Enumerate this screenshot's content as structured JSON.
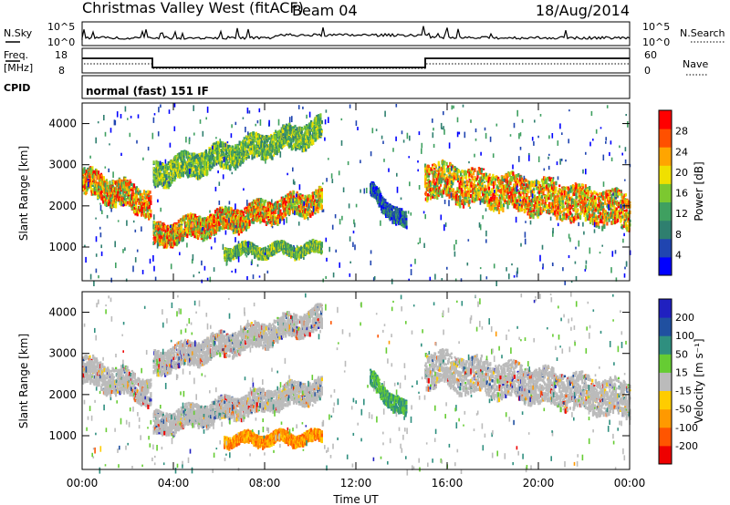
{
  "header": {
    "station": "Christmas Valley West (fitACF)",
    "beam": "Beam 04",
    "date": "18/Aug/2014"
  },
  "summary": {
    "nsky_label": "N.Sky",
    "nsky_ticks": [
      "10^5",
      "10^0"
    ],
    "nsearch_label": "N.Search",
    "nsearch_ticks": [
      "10^5",
      "10^0"
    ],
    "freq_label": [
      "Freq.",
      "[MHz]"
    ],
    "freq_ticks": [
      "18",
      "8"
    ],
    "nave_label": "Nave",
    "nave_ticks": [
      "60",
      "0"
    ],
    "cpid_label": "CPID",
    "cpid_value": "normal (fast) 151 IF"
  },
  "chart_data": [
    {
      "type": "heatmap",
      "panel": "power",
      "ylabel": "Slant Range [km]",
      "xlabel": "Time UT",
      "x_ticks": [
        "00:00",
        "04:00",
        "08:00",
        "12:00",
        "16:00",
        "20:00",
        "00:00"
      ],
      "y_ticks": [
        "1000",
        "2000",
        "3000",
        "4000"
      ],
      "xlim_hours": [
        0,
        24
      ],
      "ylim_km": [
        180,
        4500
      ],
      "colorbar": {
        "label": "Power [dB]",
        "ticks": [
          "28",
          "24",
          "20",
          "16",
          "12",
          "8",
          "4"
        ],
        "range": [
          0,
          30
        ],
        "colors": [
          "#0000ff",
          "#2045b0",
          "#2f7f6f",
          "#3fa060",
          "#7cc830",
          "#f0e000",
          "#ffa500",
          "#ff5000",
          "#ff0000"
        ]
      },
      "echo_bands": [
        {
          "t0": 0.0,
          "t1": 3.0,
          "r0": 2650,
          "r1": 2100,
          "w": 320,
          "level": "high"
        },
        {
          "t0": 3.1,
          "t1": 10.5,
          "r0": 1300,
          "r1": 2200,
          "w": 260,
          "level": "high"
        },
        {
          "t0": 3.1,
          "t1": 10.5,
          "r0": 2800,
          "r1": 3900,
          "w": 280,
          "level": "mid"
        },
        {
          "t0": 6.2,
          "t1": 10.5,
          "r0": 950,
          "r1": 1000,
          "w": 120,
          "level": "mid"
        },
        {
          "t0": 15.0,
          "t1": 24.0,
          "r0": 2700,
          "r1": 1900,
          "w": 420,
          "level": "high"
        },
        {
          "t0": 12.6,
          "t1": 14.2,
          "r0": 2400,
          "r1": 1600,
          "w": 180,
          "level": "low"
        }
      ]
    },
    {
      "type": "heatmap",
      "panel": "velocity",
      "ylabel": "Slant Range [km]",
      "xlabel": "Time UT",
      "x_ticks": [
        "00:00",
        "04:00",
        "08:00",
        "12:00",
        "16:00",
        "20:00",
        "00:00"
      ],
      "y_ticks": [
        "1000",
        "2000",
        "3000",
        "4000"
      ],
      "xlim_hours": [
        0,
        24
      ],
      "ylim_km": [
        180,
        4500
      ],
      "colorbar": {
        "label": "Velocity [m s⁻¹]",
        "ticks": [
          "200",
          "100",
          "50",
          "15",
          "-15",
          "-50",
          "-100",
          "-200"
        ],
        "range": [
          -250,
          250
        ],
        "colors": [
          "#ee0000",
          "#ff5500",
          "#ff9900",
          "#ffcc00",
          "#bbbbbb",
          "#66cc33",
          "#2f8f7f",
          "#2050a0",
          "#2020c0"
        ]
      },
      "echo_bands": [
        {
          "t0": 0.0,
          "t1": 3.0,
          "r0": 2650,
          "r1": 2100,
          "w": 320,
          "level": "gs"
        },
        {
          "t0": 3.1,
          "t1": 10.5,
          "r0": 1300,
          "r1": 2200,
          "w": 260,
          "level": "gs"
        },
        {
          "t0": 3.1,
          "t1": 10.5,
          "r0": 2800,
          "r1": 3900,
          "w": 280,
          "level": "gs"
        },
        {
          "t0": 6.2,
          "t1": 10.5,
          "r0": 950,
          "r1": 1000,
          "w": 120,
          "level": "neg"
        },
        {
          "t0": 15.0,
          "t1": 24.0,
          "r0": 2700,
          "r1": 1900,
          "w": 420,
          "level": "gs"
        },
        {
          "t0": 12.6,
          "t1": 14.2,
          "r0": 2400,
          "r1": 1600,
          "w": 180,
          "level": "pos"
        }
      ]
    }
  ],
  "time_axis_label": "Time UT"
}
